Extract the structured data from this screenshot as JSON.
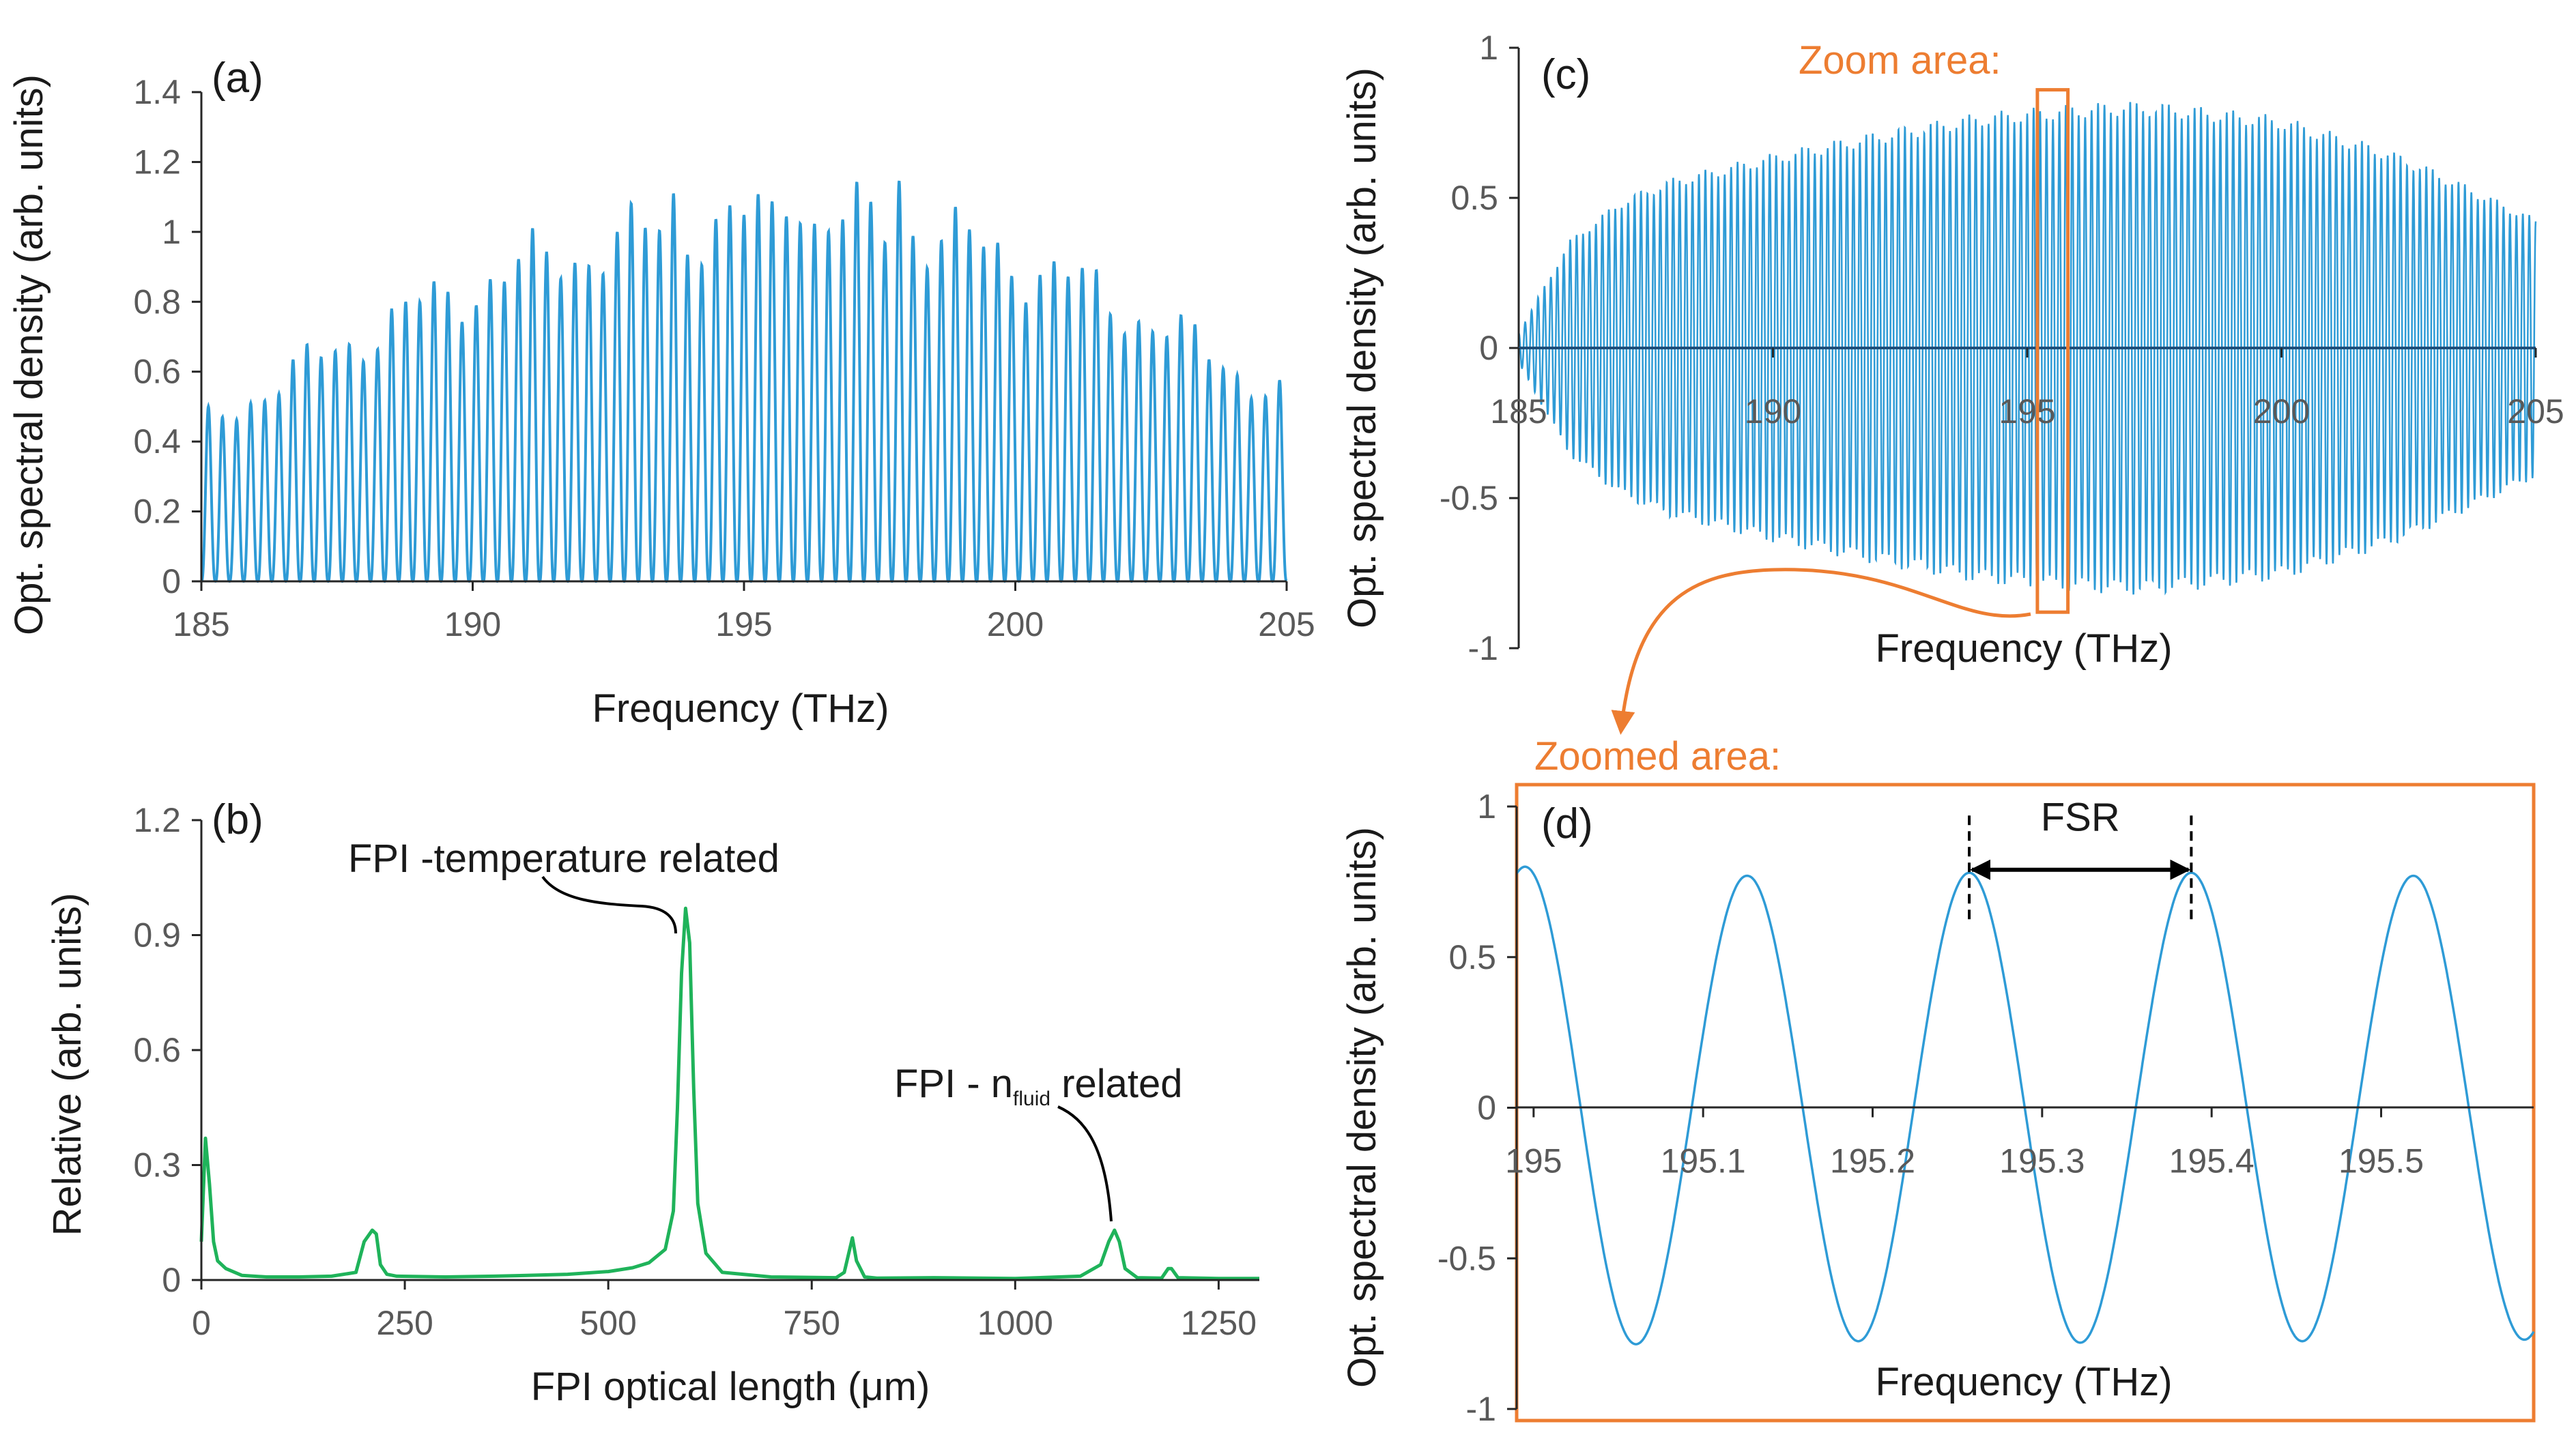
{
  "colors": {
    "blue": "#2e9bd6",
    "green": "#1fb35a",
    "orange": "#ed7d31",
    "axis": "#262626",
    "tick_text": "#595959"
  },
  "chart_data": [
    {
      "id": "a",
      "panel_label": "(a)",
      "type": "line",
      "xlabel": "Frequency (THz)",
      "ylabel": "Opt. spectral density (arb. units)",
      "xlim": [
        185,
        205
      ],
      "ylim": [
        0,
        1.4
      ],
      "xticks": [
        185,
        190,
        195,
        200,
        205
      ],
      "yticks": [
        0,
        0.2,
        0.4,
        0.6,
        0.8,
        1,
        1.2,
        1.4
      ],
      "xtick_labels": [
        "185",
        "190",
        "195",
        "200",
        "205"
      ],
      "ytick_labels": [
        "0",
        "0.2",
        "0.4",
        "0.6",
        "0.8",
        "1",
        "1.2",
        "1.4"
      ],
      "fringe_count": 77,
      "peak_envelope_x": [
        185,
        187,
        189,
        191,
        193,
        195,
        197,
        199,
        201,
        203,
        205
      ],
      "peak_envelope_y": [
        0.44,
        0.62,
        0.78,
        0.9,
        0.98,
        1.03,
        1.03,
        0.97,
        0.86,
        0.7,
        0.52
      ],
      "max_peaks_x": [
        193.7,
        195.9,
        197.9
      ],
      "max_peaks_y": [
        1.11,
        1.13,
        1.16
      ]
    },
    {
      "id": "b",
      "panel_label": "(b)",
      "type": "line",
      "xlabel": "FPI optical length (μm)",
      "ylabel": "Relative (arb. units)",
      "xlim": [
        0,
        1300
      ],
      "ylim": [
        0,
        1.2
      ],
      "xticks": [
        0,
        250,
        500,
        750,
        1000,
        1250
      ],
      "yticks": [
        0,
        0.3,
        0.6,
        0.9,
        1.2
      ],
      "xtick_labels": [
        "0",
        "250",
        "500",
        "750",
        "1000",
        "1250"
      ],
      "ytick_labels": [
        "0",
        "0.3",
        "0.6",
        "0.9",
        "1.2"
      ],
      "x": [
        0,
        5,
        10,
        15,
        20,
        30,
        50,
        80,
        120,
        160,
        190,
        200,
        210,
        215,
        220,
        228,
        240,
        300,
        360,
        400,
        450,
        500,
        530,
        550,
        570,
        580,
        585,
        590,
        595,
        600,
        605,
        610,
        620,
        640,
        700,
        780,
        790,
        800,
        805,
        815,
        830,
        900,
        1000,
        1080,
        1105,
        1115,
        1122,
        1128,
        1135,
        1150,
        1180,
        1188,
        1192,
        1200,
        1250,
        1300
      ],
      "y": [
        0.1,
        0.37,
        0.25,
        0.1,
        0.05,
        0.03,
        0.012,
        0.008,
        0.008,
        0.01,
        0.02,
        0.1,
        0.13,
        0.12,
        0.04,
        0.015,
        0.01,
        0.008,
        0.01,
        0.012,
        0.015,
        0.022,
        0.032,
        0.045,
        0.08,
        0.18,
        0.45,
        0.8,
        0.97,
        0.88,
        0.5,
        0.2,
        0.07,
        0.02,
        0.008,
        0.006,
        0.02,
        0.11,
        0.05,
        0.008,
        0.005,
        0.006,
        0.004,
        0.01,
        0.04,
        0.1,
        0.13,
        0.1,
        0.03,
        0.006,
        0.005,
        0.03,
        0.03,
        0.006,
        0.004,
        0.004
      ],
      "annotations": [
        {
          "text": "FPI -temperature related",
          "x": 593,
          "y": 0.96
        },
        {
          "text_prefix": "FPI - n",
          "text_subscript": "fluid",
          "text_suffix": " related",
          "x": 1125,
          "y": 0.14
        }
      ]
    },
    {
      "id": "c",
      "panel_label": "(c)",
      "type": "line",
      "xlabel": "Frequency (THz)",
      "ylabel": "Opt. spectral density (arb. units)",
      "xlim": [
        185,
        205
      ],
      "ylim": [
        -1,
        1
      ],
      "xticks": [
        185,
        190,
        195,
        200,
        205
      ],
      "yticks": [
        -1,
        -0.5,
        0,
        0.5,
        1
      ],
      "xtick_labels": [
        "185",
        "190",
        "195",
        "200",
        "205"
      ],
      "ytick_labels": [
        "-1",
        "-0.5",
        "0",
        "0.5",
        "1"
      ],
      "fringe_count": 158,
      "amplitude_envelope_x": [
        185,
        185.5,
        186,
        187,
        188,
        190,
        192,
        194,
        196,
        197,
        198,
        200,
        202,
        203,
        204,
        205
      ],
      "amplitude_envelope_y": [
        0.05,
        0.2,
        0.35,
        0.48,
        0.55,
        0.63,
        0.7,
        0.76,
        0.79,
        0.8,
        0.79,
        0.75,
        0.65,
        0.58,
        0.5,
        0.42
      ],
      "zoom_box_x": [
        195.2,
        195.8
      ],
      "zoom_box_y": [
        -0.88,
        0.86
      ],
      "zoom_title": "Zoom area:"
    },
    {
      "id": "d",
      "panel_label": "(d)",
      "type": "line",
      "xlabel": "Frequency (THz)",
      "ylabel": "Opt. spectral density (arb. units)",
      "xlim": [
        194.99,
        195.59
      ],
      "ylim": [
        -1,
        1
      ],
      "xticks": [
        195,
        195.1,
        195.2,
        195.3,
        195.4,
        195.5
      ],
      "yticks": [
        -1,
        -0.5,
        0,
        0.5,
        1
      ],
      "xtick_labels": [
        "195",
        "195.1",
        "195.2",
        "195.3",
        "195.4",
        "195.5"
      ],
      "ytick_labels": [
        "-1",
        "-0.5",
        "0",
        "0.5",
        "1"
      ],
      "period_THz": 0.131,
      "peak_x": [
        194.995,
        195.126,
        195.257,
        195.388,
        195.519
      ],
      "peak_y": [
        0.8,
        0.77,
        0.78,
        0.78,
        0.77
      ],
      "trough_y": [
        -0.8,
        -0.79,
        -0.79,
        -0.78
      ],
      "fsr_label": "FSR",
      "fsr_x": [
        195.257,
        195.388
      ],
      "zoom_title": "Zoomed area:"
    }
  ]
}
